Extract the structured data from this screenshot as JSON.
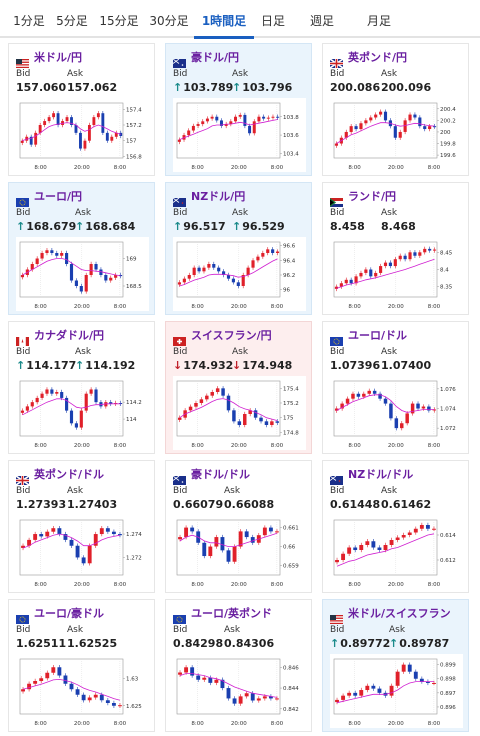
{
  "tabs": [
    {
      "label": "1分足",
      "active": false
    },
    {
      "label": "5分足",
      "active": false
    },
    {
      "label": "15分足",
      "active": false
    },
    {
      "label": "30分足",
      "active": false
    },
    {
      "label": "1時間足",
      "active": true
    },
    {
      "label": "日足",
      "active": false
    },
    {
      "label": "週足",
      "active": false
    },
    {
      "label": "月足",
      "active": false
    }
  ],
  "labels": {
    "bid": "Bid",
    "ask": "Ask"
  },
  "colors": {
    "up": "#1a8a8a",
    "down": "#c0202a",
    "pair": "#6a1fa0",
    "ma": "#d01fd0",
    "bull": "#e0202a",
    "bear": "#1a3fb0",
    "active_tab": "#1a5fc0"
  },
  "pairs": [
    {
      "name": "米ドル/円",
      "flag": "us-jp-flag-icon",
      "bid": "157.060",
      "ask": "157.062",
      "dir": "none",
      "bg": "white",
      "ticks": [
        "157.4",
        "157.2",
        "157",
        "156.8"
      ],
      "ylim": [
        156.78,
        157.48
      ],
      "times": [
        "8:00",
        "20:00",
        "8:00"
      ],
      "close": [
        157.0,
        157.05,
        156.95,
        157.1,
        157.2,
        157.25,
        157.3,
        157.35,
        157.2,
        157.25,
        157.3,
        157.2,
        157.1,
        156.9,
        157.0,
        157.2,
        157.3,
        157.35,
        157.1,
        157.0,
        157.05,
        157.1,
        157.06
      ],
      "ma": [
        157.0,
        157.02,
        157.03,
        157.06,
        157.1,
        157.14,
        157.18,
        157.2,
        157.21,
        157.22,
        157.23,
        157.22,
        157.2,
        157.15,
        157.12,
        157.14,
        157.18,
        157.2,
        157.18,
        157.15,
        157.12,
        157.1,
        157.08
      ]
    },
    {
      "name": "豪ドル/円",
      "flag": "au-jp-flag-icon",
      "bid": "103.789",
      "ask": "103.796",
      "dir": "up",
      "bg": "blue",
      "ticks": [
        "103.8",
        "103.6",
        "103.4"
      ],
      "ylim": [
        103.35,
        103.95
      ],
      "times": [
        "8:00",
        "20:00",
        "8:00"
      ],
      "close": [
        103.55,
        103.6,
        103.65,
        103.7,
        103.72,
        103.75,
        103.78,
        103.8,
        103.76,
        103.7,
        103.72,
        103.75,
        103.8,
        103.82,
        103.7,
        103.62,
        103.75,
        103.8,
        103.78,
        103.79,
        103.8,
        103.79
      ],
      "ma": [
        103.55,
        103.57,
        103.59,
        103.61,
        103.63,
        103.65,
        103.67,
        103.7,
        103.71,
        103.71,
        103.72,
        103.72,
        103.73,
        103.74,
        103.73,
        103.71,
        103.72,
        103.73,
        103.74,
        103.75,
        103.76,
        103.77
      ]
    },
    {
      "name": "英ポンド/円",
      "flag": "gb-jp-flag-icon",
      "bid": "200.086",
      "ask": "200.096",
      "dir": "none",
      "bg": "white",
      "ticks": [
        "200.4",
        "200.2",
        "200",
        "199.8",
        "199.6"
      ],
      "ylim": [
        199.55,
        200.5
      ],
      "times": [
        "8:00",
        "20:00",
        "8:00"
      ],
      "close": [
        199.8,
        199.9,
        200.0,
        200.1,
        200.05,
        200.15,
        200.2,
        200.25,
        200.3,
        200.35,
        200.2,
        200.1,
        199.9,
        200.0,
        200.2,
        200.3,
        200.25,
        200.1,
        200.05,
        200.1,
        200.09
      ],
      "ma": [
        199.8,
        199.85,
        199.9,
        199.95,
        199.98,
        200.02,
        200.06,
        200.1,
        200.13,
        200.16,
        200.16,
        200.15,
        200.12,
        200.1,
        200.11,
        200.13,
        200.15,
        200.14,
        200.12,
        200.11,
        200.1
      ]
    },
    {
      "name": "ユーロ/円",
      "flag": "eu-jp-flag-icon",
      "bid": "168.679",
      "ask": "168.684",
      "dir": "up",
      "bg": "blue",
      "ticks": [
        "169",
        "168.5"
      ],
      "ylim": [
        168.3,
        169.3
      ],
      "times": [
        "8:00",
        "20:00",
        "8:00"
      ],
      "close": [
        168.7,
        168.8,
        168.9,
        169.0,
        169.1,
        169.15,
        169.1,
        169.05,
        169.1,
        168.9,
        168.6,
        168.5,
        168.4,
        168.7,
        168.9,
        168.8,
        168.7,
        168.6,
        168.65,
        168.7,
        168.68
      ],
      "ma": [
        168.7,
        168.75,
        168.8,
        168.85,
        168.9,
        168.95,
        168.98,
        169.0,
        169.0,
        168.98,
        168.92,
        168.86,
        168.8,
        168.78,
        168.78,
        168.77,
        168.76,
        168.74,
        168.72,
        168.7,
        168.69
      ]
    },
    {
      "name": "NZドル/円",
      "flag": "nz-jp-flag-icon",
      "bid": "96.517",
      "ask": "96.529",
      "dir": "up",
      "bg": "blue",
      "ticks": [
        "96.6",
        "96.4",
        "96.2",
        "96"
      ],
      "ylim": [
        95.9,
        96.65
      ],
      "times": [
        "8:00",
        "20:00",
        "8:00"
      ],
      "close": [
        96.1,
        96.15,
        96.2,
        96.3,
        96.25,
        96.3,
        96.35,
        96.3,
        96.25,
        96.2,
        96.15,
        96.1,
        96.05,
        96.2,
        96.3,
        96.4,
        96.45,
        96.5,
        96.55,
        96.5,
        96.52
      ],
      "ma": [
        96.05,
        96.07,
        96.1,
        96.13,
        96.15,
        96.17,
        96.2,
        96.21,
        96.21,
        96.21,
        96.2,
        96.19,
        96.17,
        96.18,
        96.2,
        96.23,
        96.27,
        96.31,
        96.35,
        96.39,
        96.42
      ]
    },
    {
      "name": "ランド/円",
      "flag": "za-jp-flag-icon",
      "bid": "8.458",
      "ask": "8.468",
      "dir": "none",
      "bg": "white",
      "ticks": [
        "8.45",
        "8.4",
        "8.35"
      ],
      "ylim": [
        8.32,
        8.48
      ],
      "times": [
        "8:00",
        "20:00",
        "8:00"
      ],
      "close": [
        8.35,
        8.36,
        8.37,
        8.36,
        8.38,
        8.39,
        8.4,
        8.38,
        8.39,
        8.41,
        8.42,
        8.41,
        8.43,
        8.44,
        8.43,
        8.45,
        8.44,
        8.45,
        8.46,
        8.455,
        8.458
      ],
      "ma": [
        8.345,
        8.35,
        8.355,
        8.358,
        8.362,
        8.366,
        8.37,
        8.373,
        8.376,
        8.38,
        8.384,
        8.388,
        8.392,
        8.396,
        8.4,
        8.405,
        8.41,
        8.415,
        8.42,
        8.425,
        8.43
      ]
    },
    {
      "name": "カナダドル/円",
      "flag": "ca-jp-flag-icon",
      "bid": "114.177",
      "ask": "114.192",
      "dir": "up",
      "bg": "white",
      "ticks": [
        "114.2",
        "114"
      ],
      "ylim": [
        113.8,
        114.45
      ],
      "times": [
        "8:00",
        "20:00",
        "8:00"
      ],
      "close": [
        114.1,
        114.15,
        114.2,
        114.25,
        114.3,
        114.35,
        114.3,
        114.32,
        114.25,
        114.1,
        113.95,
        113.9,
        114.1,
        114.3,
        114.35,
        114.2,
        114.15,
        114.2,
        114.18,
        114.19,
        114.18
      ],
      "ma": [
        114.05,
        114.08,
        114.11,
        114.14,
        114.17,
        114.2,
        114.22,
        114.24,
        114.24,
        114.22,
        114.18,
        114.14,
        114.13,
        114.14,
        114.16,
        114.17,
        114.17,
        114.18,
        114.18,
        114.18,
        114.18
      ]
    },
    {
      "name": "スイスフラン/円",
      "flag": "ch-jp-flag-icon",
      "bid": "174.932",
      "ask": "174.948",
      "dir": "down",
      "bg": "pink",
      "ticks": [
        "175.4",
        "175.2",
        "175",
        "174.8"
      ],
      "ylim": [
        174.75,
        175.5
      ],
      "times": [
        "8:00",
        "20:00",
        "8:00"
      ],
      "close": [
        175.0,
        175.1,
        175.15,
        175.2,
        175.25,
        175.3,
        175.35,
        175.4,
        175.3,
        175.1,
        174.95,
        174.9,
        175.05,
        175.1,
        175.0,
        174.95,
        174.9,
        174.95,
        174.93
      ],
      "ma": [
        175.0,
        175.05,
        175.08,
        175.11,
        175.14,
        175.18,
        175.22,
        175.25,
        175.26,
        175.24,
        175.2,
        175.15,
        175.12,
        175.1,
        175.07,
        175.04,
        175.0,
        174.98,
        174.96
      ]
    },
    {
      "name": "ユーロ/ドル",
      "flag": "eu-us-flag-icon",
      "bid": "1.07396",
      "ask": "1.07400",
      "dir": "none",
      "bg": "white",
      "ticks": [
        "1.076",
        "1.074",
        "1.072"
      ],
      "ylim": [
        1.0712,
        1.0768
      ],
      "times": [
        "8:00",
        "20:00",
        "8:00"
      ],
      "close": [
        1.074,
        1.0745,
        1.075,
        1.0755,
        1.0752,
        1.0755,
        1.0758,
        1.0755,
        1.075,
        1.0745,
        1.073,
        1.072,
        1.0725,
        1.0735,
        1.0745,
        1.074,
        1.0742,
        1.0738,
        1.0739
      ],
      "ma": [
        1.0738,
        1.0741,
        1.0744,
        1.0747,
        1.0749,
        1.0751,
        1.0753,
        1.0754,
        1.0754,
        1.0752,
        1.0748,
        1.0742,
        1.0738,
        1.0736,
        1.0737,
        1.0738,
        1.0739,
        1.0739,
        1.0739
      ]
    },
    {
      "name": "英ポンド/ドル",
      "flag": "gb-us-flag-icon",
      "bid": "1.27393",
      "ask": "1.27403",
      "dir": "none",
      "bg": "white",
      "ticks": [
        "1.274",
        "1.272"
      ],
      "ylim": [
        1.2705,
        1.2752
      ],
      "times": [
        "8:00",
        "20:00",
        "8:00"
      ],
      "close": [
        1.273,
        1.2735,
        1.274,
        1.2738,
        1.2742,
        1.2745,
        1.274,
        1.2735,
        1.273,
        1.272,
        1.2715,
        1.273,
        1.274,
        1.2745,
        1.2742,
        1.274,
        1.2739
      ],
      "ma": [
        1.2728,
        1.273,
        1.2733,
        1.2735,
        1.2737,
        1.2739,
        1.274,
        1.2739,
        1.2737,
        1.2734,
        1.273,
        1.273,
        1.2732,
        1.2735,
        1.2737,
        1.2738,
        1.2739
      ]
    },
    {
      "name": "豪ドル/ドル",
      "flag": "au-us-flag-icon",
      "bid": "0.66079",
      "ask": "0.66088",
      "dir": "none",
      "bg": "white",
      "ticks": [
        "0.661",
        "0.66",
        "0.659"
      ],
      "ylim": [
        0.6585,
        0.6614
      ],
      "times": [
        "8:00",
        "20:00",
        "8:00"
      ],
      "close": [
        0.6605,
        0.661,
        0.6608,
        0.6602,
        0.6595,
        0.66,
        0.6605,
        0.6598,
        0.6592,
        0.66,
        0.6608,
        0.6605,
        0.6602,
        0.6606,
        0.661,
        0.6608,
        0.6608
      ],
      "ma": [
        0.6603,
        0.6605,
        0.6606,
        0.6605,
        0.6603,
        0.6602,
        0.6602,
        0.6601,
        0.66,
        0.66,
        0.6601,
        0.6602,
        0.6603,
        0.6604,
        0.6605,
        0.6606,
        0.6607
      ]
    },
    {
      "name": "NZドル/ドル",
      "flag": "nz-us-flag-icon",
      "bid": "0.61448",
      "ask": "0.61462",
      "dir": "none",
      "bg": "white",
      "ticks": [
        "0.614",
        "0.612"
      ],
      "ylim": [
        0.6108,
        0.6152
      ],
      "times": [
        "8:00",
        "20:00",
        "8:00"
      ],
      "close": [
        0.612,
        0.6125,
        0.613,
        0.6128,
        0.6132,
        0.6135,
        0.613,
        0.6128,
        0.6132,
        0.6136,
        0.6138,
        0.614,
        0.6142,
        0.6145,
        0.6148,
        0.6145,
        0.6145
      ],
      "ma": [
        0.6115,
        0.6117,
        0.6119,
        0.612,
        0.6122,
        0.6124,
        0.6125,
        0.6126,
        0.6127,
        0.6129,
        0.613,
        0.6132,
        0.6134,
        0.6136,
        0.6138,
        0.614,
        0.6141
      ]
    },
    {
      "name": "ユーロ/豪ドル",
      "flag": "eu-au-flag-icon",
      "bid": "1.62511",
      "ask": "1.62525",
      "dir": "none",
      "bg": "white",
      "ticks": [
        "1.63",
        "1.625"
      ],
      "ylim": [
        1.6235,
        1.6335
      ],
      "times": [
        "8:00",
        "20:00",
        "8:00"
      ],
      "close": [
        1.628,
        1.629,
        1.6295,
        1.63,
        1.631,
        1.632,
        1.6305,
        1.629,
        1.628,
        1.627,
        1.626,
        1.6265,
        1.627,
        1.626,
        1.6255,
        1.625,
        1.6251
      ],
      "ma": [
        1.628,
        1.6283,
        1.6286,
        1.6289,
        1.6293,
        1.6297,
        1.6298,
        1.6296,
        1.6293,
        1.6288,
        1.6282,
        1.6278,
        1.6275,
        1.6271,
        1.6267,
        1.6263,
        1.626
      ]
    },
    {
      "name": "ユーロ/英ポンド",
      "flag": "eu-gb-flag-icon",
      "bid": "0.84298",
      "ask": "0.84306",
      "dir": "none",
      "bg": "white",
      "ticks": [
        "0.846",
        "0.844",
        "0.842"
      ],
      "ylim": [
        0.8415,
        0.8468
      ],
      "times": [
        "8:00",
        "20:00",
        "8:00"
      ],
      "close": [
        0.8455,
        0.846,
        0.8452,
        0.8448,
        0.845,
        0.8445,
        0.8448,
        0.844,
        0.843,
        0.8425,
        0.8432,
        0.8435,
        0.8428,
        0.843,
        0.8432,
        0.843,
        0.843
      ],
      "ma": [
        0.8452,
        0.8454,
        0.8454,
        0.8453,
        0.8452,
        0.845,
        0.8449,
        0.8447,
        0.8444,
        0.8441,
        0.8439,
        0.8437,
        0.8435,
        0.8434,
        0.8433,
        0.8432,
        0.8431
      ]
    },
    {
      "name": "米ドル/スイスフラン",
      "flag": "us-ch-flag-icon",
      "bid": "0.89772",
      "ask": "0.89787",
      "dir": "up",
      "bg": "blue",
      "ticks": [
        "0.899",
        "0.898",
        "0.897",
        "0.896"
      ],
      "ylim": [
        0.8955,
        0.8994
      ],
      "times": [
        "8:00",
        "20:00",
        "8:00"
      ],
      "close": [
        0.8965,
        0.8968,
        0.897,
        0.8968,
        0.8972,
        0.8975,
        0.8973,
        0.897,
        0.8968,
        0.8975,
        0.8985,
        0.899,
        0.8985,
        0.898,
        0.8978,
        0.8977,
        0.8977
      ],
      "ma": [
        0.8963,
        0.8964,
        0.8965,
        0.8966,
        0.8967,
        0.8968,
        0.8969,
        0.8969,
        0.8969,
        0.897,
        0.8972,
        0.8975,
        0.8977,
        0.8978,
        0.8978,
        0.8978,
        0.8978
      ]
    }
  ]
}
